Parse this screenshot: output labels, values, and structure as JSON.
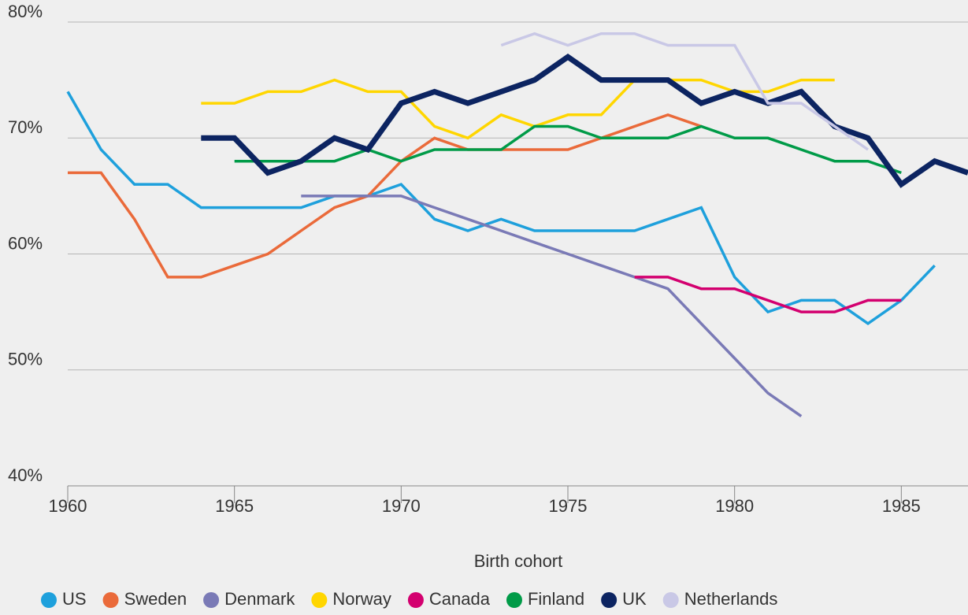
{
  "chart_data": {
    "type": "line",
    "xlabel": "Birth cohort",
    "xlim": [
      1960,
      1987
    ],
    "xticks": [
      1960,
      1965,
      1970,
      1975,
      1980,
      1985
    ],
    "ylim": [
      40,
      80
    ],
    "yticks": [
      {
        "value": 40,
        "label": "40%"
      },
      {
        "value": 50,
        "label": "50%"
      },
      {
        "value": 60,
        "label": "60%"
      },
      {
        "value": 70,
        "label": "70%"
      },
      {
        "value": 80,
        "label": "80%"
      }
    ],
    "grid": true,
    "legend": "bottom",
    "series": [
      {
        "name": "US",
        "color": "#1ea0dc",
        "width": 3.5,
        "x": [
          1960,
          1961,
          1962,
          1963,
          1964,
          1965,
          1966,
          1967,
          1968,
          1969,
          1970,
          1971,
          1972,
          1973,
          1974,
          1975,
          1976,
          1977,
          1978,
          1979,
          1980,
          1981,
          1982,
          1983,
          1984,
          1985,
          1986
        ],
        "values": [
          74,
          69,
          66,
          66,
          64,
          64,
          64,
          64,
          65,
          65,
          66,
          63,
          62,
          63,
          62,
          62,
          62,
          62,
          63,
          64,
          58,
          55,
          56,
          56,
          54,
          56,
          59
        ]
      },
      {
        "name": "Sweden",
        "color": "#ea6a3a",
        "width": 3.5,
        "x": [
          1960,
          1961,
          1962,
          1963,
          1964,
          1965,
          1966,
          1967,
          1968,
          1969,
          1970,
          1971,
          1972,
          1973,
          1974,
          1975,
          1976,
          1977,
          1978,
          1979
        ],
        "values": [
          67,
          67,
          63,
          58,
          58,
          59,
          60,
          62,
          64,
          65,
          68,
          70,
          69,
          69,
          69,
          69,
          70,
          71,
          72,
          71
        ]
      },
      {
        "name": "Denmark",
        "color": "#7a7ab6",
        "width": 3.5,
        "x": [
          1967,
          1968,
          1969,
          1970,
          1971,
          1972,
          1973,
          1974,
          1975,
          1976,
          1977,
          1978,
          1979,
          1980,
          1981,
          1982
        ],
        "values": [
          65,
          65,
          65,
          65,
          64,
          63,
          62,
          61,
          60,
          59,
          58,
          57,
          54,
          51,
          48,
          46
        ]
      },
      {
        "name": "Norway",
        "color": "#ffd600",
        "width": 3.5,
        "x": [
          1964,
          1965,
          1966,
          1967,
          1968,
          1969,
          1970,
          1971,
          1972,
          1973,
          1974,
          1975,
          1976,
          1977,
          1978,
          1979,
          1980,
          1981,
          1982,
          1983
        ],
        "values": [
          73,
          73,
          74,
          74,
          75,
          74,
          74,
          71,
          70,
          72,
          71,
          72,
          72,
          75,
          75,
          75,
          74,
          74,
          75,
          75
        ]
      },
      {
        "name": "Canada",
        "color": "#d3006f",
        "width": 3.5,
        "x": [
          1977,
          1978,
          1979,
          1980,
          1981,
          1982,
          1983,
          1984,
          1985
        ],
        "values": [
          58,
          58,
          57,
          57,
          56,
          55,
          55,
          56,
          56
        ]
      },
      {
        "name": "Finland",
        "color": "#009b48",
        "width": 3.5,
        "x": [
          1965,
          1966,
          1967,
          1968,
          1969,
          1970,
          1971,
          1972,
          1973,
          1974,
          1975,
          1976,
          1977,
          1978,
          1979,
          1980,
          1981,
          1982,
          1983,
          1984,
          1985
        ],
        "values": [
          68,
          68,
          68,
          68,
          69,
          68,
          69,
          69,
          69,
          71,
          71,
          70,
          70,
          70,
          71,
          70,
          70,
          69,
          68,
          68,
          67
        ]
      },
      {
        "name": "UK",
        "color": "#0c2461",
        "width": 7,
        "x": [
          1964,
          1965,
          1966,
          1967,
          1968,
          1969,
          1970,
          1971,
          1972,
          1973,
          1974,
          1975,
          1976,
          1977,
          1978,
          1979,
          1980,
          1981,
          1982,
          1983,
          1984,
          1985,
          1986,
          1987
        ],
        "values": [
          70,
          70,
          67,
          68,
          70,
          69,
          73,
          74,
          73,
          74,
          75,
          77,
          75,
          75,
          75,
          73,
          74,
          73,
          74,
          71,
          70,
          66,
          68,
          67
        ]
      },
      {
        "name": "Netherlands",
        "color": "#c9c8e6",
        "width": 3.5,
        "x": [
          1973,
          1974,
          1975,
          1976,
          1977,
          1978,
          1979,
          1980,
          1981,
          1982,
          1983,
          1984
        ],
        "values": [
          78,
          79,
          78,
          79,
          79,
          78,
          78,
          78,
          73,
          73,
          71,
          69
        ]
      }
    ]
  }
}
